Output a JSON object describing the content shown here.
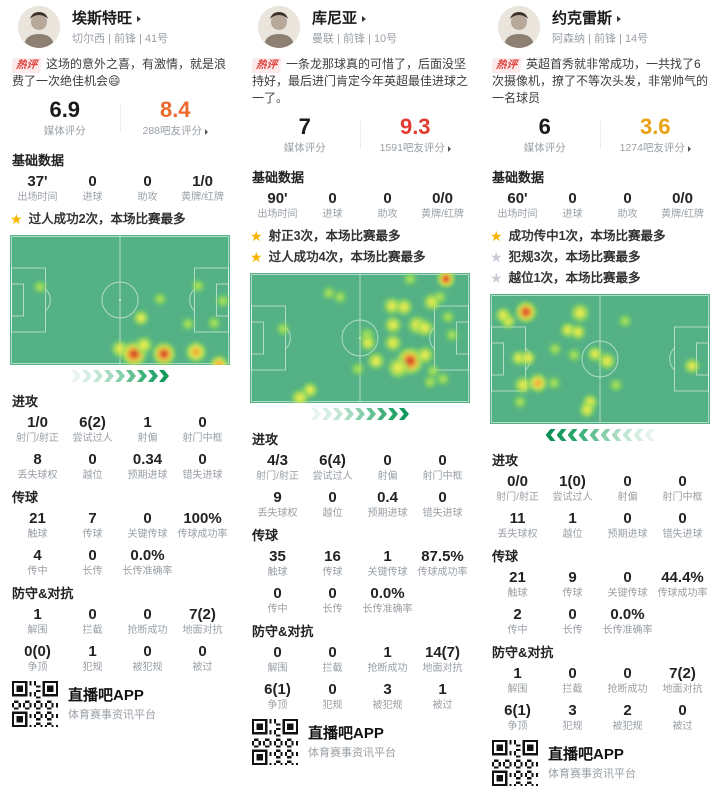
{
  "shared": {
    "hot_label": "热评",
    "media_rating_label": "媒体评分",
    "sections": {
      "basic": "基础数据",
      "attack": "进攻",
      "passing": "传球",
      "defense": "防守&对抗"
    },
    "app": {
      "name": "直播吧APP",
      "tagline": "体育赛事资讯平台"
    },
    "colors": {
      "field_green": "#53b185",
      "star_gold": "#f7b500",
      "star_gray": "#c7ccd4",
      "hot_red": "#e0403c"
    }
  },
  "players": [
    {
      "name": "埃斯特旺",
      "meta": "切尔西 | 前锋 | 41号",
      "comment": "这场的意外之喜，有激情，就是浪费了一次绝佳机会😄",
      "media_rating": "6.9",
      "fan_rating": "8.4",
      "fan_rating_color": "#ed6a2c",
      "fan_rating_label": "288吧友评分",
      "basic": [
        {
          "v": "37'",
          "l": "出场时间"
        },
        {
          "v": "0",
          "l": "进球"
        },
        {
          "v": "0",
          "l": "助攻"
        },
        {
          "v": "1/0",
          "l": "黄牌/红牌"
        }
      ],
      "highlights": [
        {
          "text": "过人成功2次，本场比赛最多",
          "level": "gold"
        }
      ],
      "heatmap": {
        "direction": "right",
        "chevrons": 9,
        "spots": [
          [
            30,
            52,
            8,
            0
          ],
          [
            150,
            64,
            8,
            0
          ],
          [
            131,
            83,
            9,
            1
          ],
          [
            188,
            51,
            8,
            0
          ],
          [
            213,
            66,
            8,
            0
          ],
          [
            178,
            89,
            8,
            0
          ],
          [
            204,
            88,
            8,
            0
          ],
          [
            110,
            114,
            10,
            1
          ],
          [
            124,
            119,
            14,
            3
          ],
          [
            154,
            119,
            13,
            3
          ],
          [
            186,
            117,
            12,
            2
          ],
          [
            134,
            110,
            10,
            1
          ],
          [
            209,
            129,
            10,
            2
          ]
        ]
      },
      "attack": [
        {
          "v": "1/0",
          "l": "射门/射正"
        },
        {
          "v": "6(2)",
          "l": "尝试过人"
        },
        {
          "v": "1",
          "l": "射偏"
        },
        {
          "v": "0",
          "l": "射门中框"
        },
        {
          "v": "8",
          "l": "丢失球权"
        },
        {
          "v": "0",
          "l": "越位"
        },
        {
          "v": "0.34",
          "l": "预期进球"
        },
        {
          "v": "0",
          "l": "错失进球"
        }
      ],
      "passing": [
        {
          "v": "21",
          "l": "触球"
        },
        {
          "v": "7",
          "l": "传球"
        },
        {
          "v": "0",
          "l": "关键传球"
        },
        {
          "v": "100%",
          "l": "传球成功率"
        },
        {
          "v": "4",
          "l": "传中"
        },
        {
          "v": "0",
          "l": "长传"
        },
        {
          "v": "0.0%",
          "l": "长传准确率"
        }
      ],
      "defense": [
        {
          "v": "1",
          "l": "解围"
        },
        {
          "v": "0",
          "l": "拦截"
        },
        {
          "v": "0",
          "l": "抢断成功"
        },
        {
          "v": "7(2)",
          "l": "地面对抗"
        },
        {
          "v": "0(0)",
          "l": "争顶"
        },
        {
          "v": "1",
          "l": "犯规"
        },
        {
          "v": "0",
          "l": "被犯规"
        },
        {
          "v": "0",
          "l": "被过"
        }
      ]
    },
    {
      "name": "库尼亚",
      "meta": "曼联 | 前锋 | 10号",
      "comment": "一条龙那球真的可惜了，后面没坚持好，最后进门肯定今年英超最佳进球之一了。",
      "media_rating": "7",
      "fan_rating": "9.3",
      "fan_rating_color": "#e23c30",
      "fan_rating_label": "1591吧友评分",
      "basic": [
        {
          "v": "90'",
          "l": "出场时间"
        },
        {
          "v": "0",
          "l": "进球"
        },
        {
          "v": "0",
          "l": "助攻"
        },
        {
          "v": "0/0",
          "l": "黄牌/红牌"
        }
      ],
      "highlights": [
        {
          "text": "射正3次，本场比赛最多",
          "level": "gold"
        },
        {
          "text": "过人成功4次，本场比赛最多",
          "level": "gold"
        }
      ],
      "heatmap": {
        "direction": "right",
        "chevrons": 9,
        "spots": [
          [
            196,
            6,
            10,
            3
          ],
          [
            79,
            20,
            8,
            0
          ],
          [
            90,
            24,
            8,
            0
          ],
          [
            160,
            6,
            8,
            0
          ],
          [
            142,
            33,
            10,
            1
          ],
          [
            154,
            34,
            10,
            1
          ],
          [
            182,
            29,
            10,
            1
          ],
          [
            190,
            24,
            8,
            0
          ],
          [
            33,
            56,
            8,
            0
          ],
          [
            143,
            52,
            10,
            1
          ],
          [
            167,
            52,
            11,
            1
          ],
          [
            175,
            55,
            10,
            1
          ],
          [
            198,
            44,
            8,
            0
          ],
          [
            202,
            62,
            8,
            0
          ],
          [
            117,
            62,
            9,
            0
          ],
          [
            118,
            70,
            9,
            1
          ],
          [
            143,
            70,
            10,
            1
          ],
          [
            160,
            88,
            15,
            3
          ],
          [
            148,
            95,
            12,
            1
          ],
          [
            175,
            82,
            10,
            1
          ],
          [
            126,
            88,
            10,
            1
          ],
          [
            108,
            96,
            8,
            0
          ],
          [
            183,
            98,
            8,
            0
          ],
          [
            193,
            106,
            8,
            0
          ],
          [
            180,
            109,
            8,
            0
          ],
          [
            60,
            117,
            9,
            1
          ],
          [
            50,
            125,
            10,
            1
          ]
        ]
      },
      "attack": [
        {
          "v": "4/3",
          "l": "射门/射正"
        },
        {
          "v": "6(4)",
          "l": "尝试过人"
        },
        {
          "v": "0",
          "l": "射偏"
        },
        {
          "v": "0",
          "l": "射门中框"
        },
        {
          "v": "9",
          "l": "丢失球权"
        },
        {
          "v": "0",
          "l": "越位"
        },
        {
          "v": "0.4",
          "l": "预期进球"
        },
        {
          "v": "0",
          "l": "错失进球"
        }
      ],
      "passing": [
        {
          "v": "35",
          "l": "触球"
        },
        {
          "v": "16",
          "l": "传球"
        },
        {
          "v": "1",
          "l": "关键传球"
        },
        {
          "v": "87.5%",
          "l": "传球成功率"
        },
        {
          "v": "0",
          "l": "传中"
        },
        {
          "v": "0",
          "l": "长传"
        },
        {
          "v": "0.0%",
          "l": "长传准确率"
        }
      ],
      "defense": [
        {
          "v": "0",
          "l": "解围"
        },
        {
          "v": "0",
          "l": "拦截"
        },
        {
          "v": "1",
          "l": "抢断成功"
        },
        {
          "v": "14(7)",
          "l": "地面对抗"
        },
        {
          "v": "6(1)",
          "l": "争顶"
        },
        {
          "v": "0",
          "l": "犯规"
        },
        {
          "v": "3",
          "l": "被犯规"
        },
        {
          "v": "1",
          "l": "被过"
        }
      ]
    },
    {
      "name": "约克雷斯",
      "meta": "阿森纳 | 前锋 | 14号",
      "comment": "英超首秀就非常成功，一共找了6次摄像机，撩了不等次头发，非常帅气的一名球员",
      "media_rating": "6",
      "fan_rating": "3.6",
      "fan_rating_color": "#e8a213",
      "fan_rating_label": "1274吧友评分",
      "basic": [
        {
          "v": "60'",
          "l": "出场时间"
        },
        {
          "v": "0",
          "l": "进球"
        },
        {
          "v": "0",
          "l": "助攻"
        },
        {
          "v": "0/0",
          "l": "黄牌/红牌"
        }
      ],
      "highlights": [
        {
          "text": "成功传中1次，本场比赛最多",
          "level": "gold"
        },
        {
          "text": "犯规3次，本场比赛最多",
          "level": "gray"
        },
        {
          "text": "越位1次，本场比赛最多",
          "level": "gray"
        }
      ],
      "heatmap": {
        "direction": "left",
        "chevrons": 10,
        "spots": [
          [
            36,
            18,
            12,
            3
          ],
          [
            18,
            27,
            9,
            1
          ],
          [
            13,
            21,
            9,
            1
          ],
          [
            90,
            19,
            11,
            1
          ],
          [
            78,
            36,
            9,
            1
          ],
          [
            88,
            38,
            9,
            1
          ],
          [
            135,
            27,
            8,
            0
          ],
          [
            65,
            55,
            8,
            0
          ],
          [
            84,
            61,
            8,
            0
          ],
          [
            105,
            60,
            9,
            1
          ],
          [
            117,
            67,
            10,
            1
          ],
          [
            29,
            64,
            9,
            1
          ],
          [
            38,
            64,
            9,
            1
          ],
          [
            202,
            72,
            9,
            1
          ],
          [
            33,
            91,
            10,
            1
          ],
          [
            48,
            89,
            11,
            2
          ],
          [
            64,
            89,
            8,
            0
          ],
          [
            30,
            108,
            8,
            0
          ],
          [
            100,
            108,
            9,
            1
          ],
          [
            97,
            116,
            9,
            1
          ],
          [
            126,
            91,
            8,
            0
          ]
        ]
      },
      "attack": [
        {
          "v": "0/0",
          "l": "射门/射正"
        },
        {
          "v": "1(0)",
          "l": "尝试过人"
        },
        {
          "v": "0",
          "l": "射偏"
        },
        {
          "v": "0",
          "l": "射门中框"
        },
        {
          "v": "11",
          "l": "丢失球权"
        },
        {
          "v": "1",
          "l": "越位"
        },
        {
          "v": "0",
          "l": "预期进球"
        },
        {
          "v": "0",
          "l": "错失进球"
        }
      ],
      "passing": [
        {
          "v": "21",
          "l": "触球"
        },
        {
          "v": "9",
          "l": "传球"
        },
        {
          "v": "0",
          "l": "关键传球"
        },
        {
          "v": "44.4%",
          "l": "传球成功率"
        },
        {
          "v": "2",
          "l": "传中"
        },
        {
          "v": "0",
          "l": "长传"
        },
        {
          "v": "0.0%",
          "l": "长传准确率"
        }
      ],
      "defense": [
        {
          "v": "1",
          "l": "解围"
        },
        {
          "v": "0",
          "l": "拦截"
        },
        {
          "v": "0",
          "l": "抢断成功"
        },
        {
          "v": "7(2)",
          "l": "地面对抗"
        },
        {
          "v": "6(1)",
          "l": "争顶"
        },
        {
          "v": "3",
          "l": "犯规"
        },
        {
          "v": "2",
          "l": "被犯规"
        },
        {
          "v": "0",
          "l": "被过"
        }
      ]
    }
  ]
}
